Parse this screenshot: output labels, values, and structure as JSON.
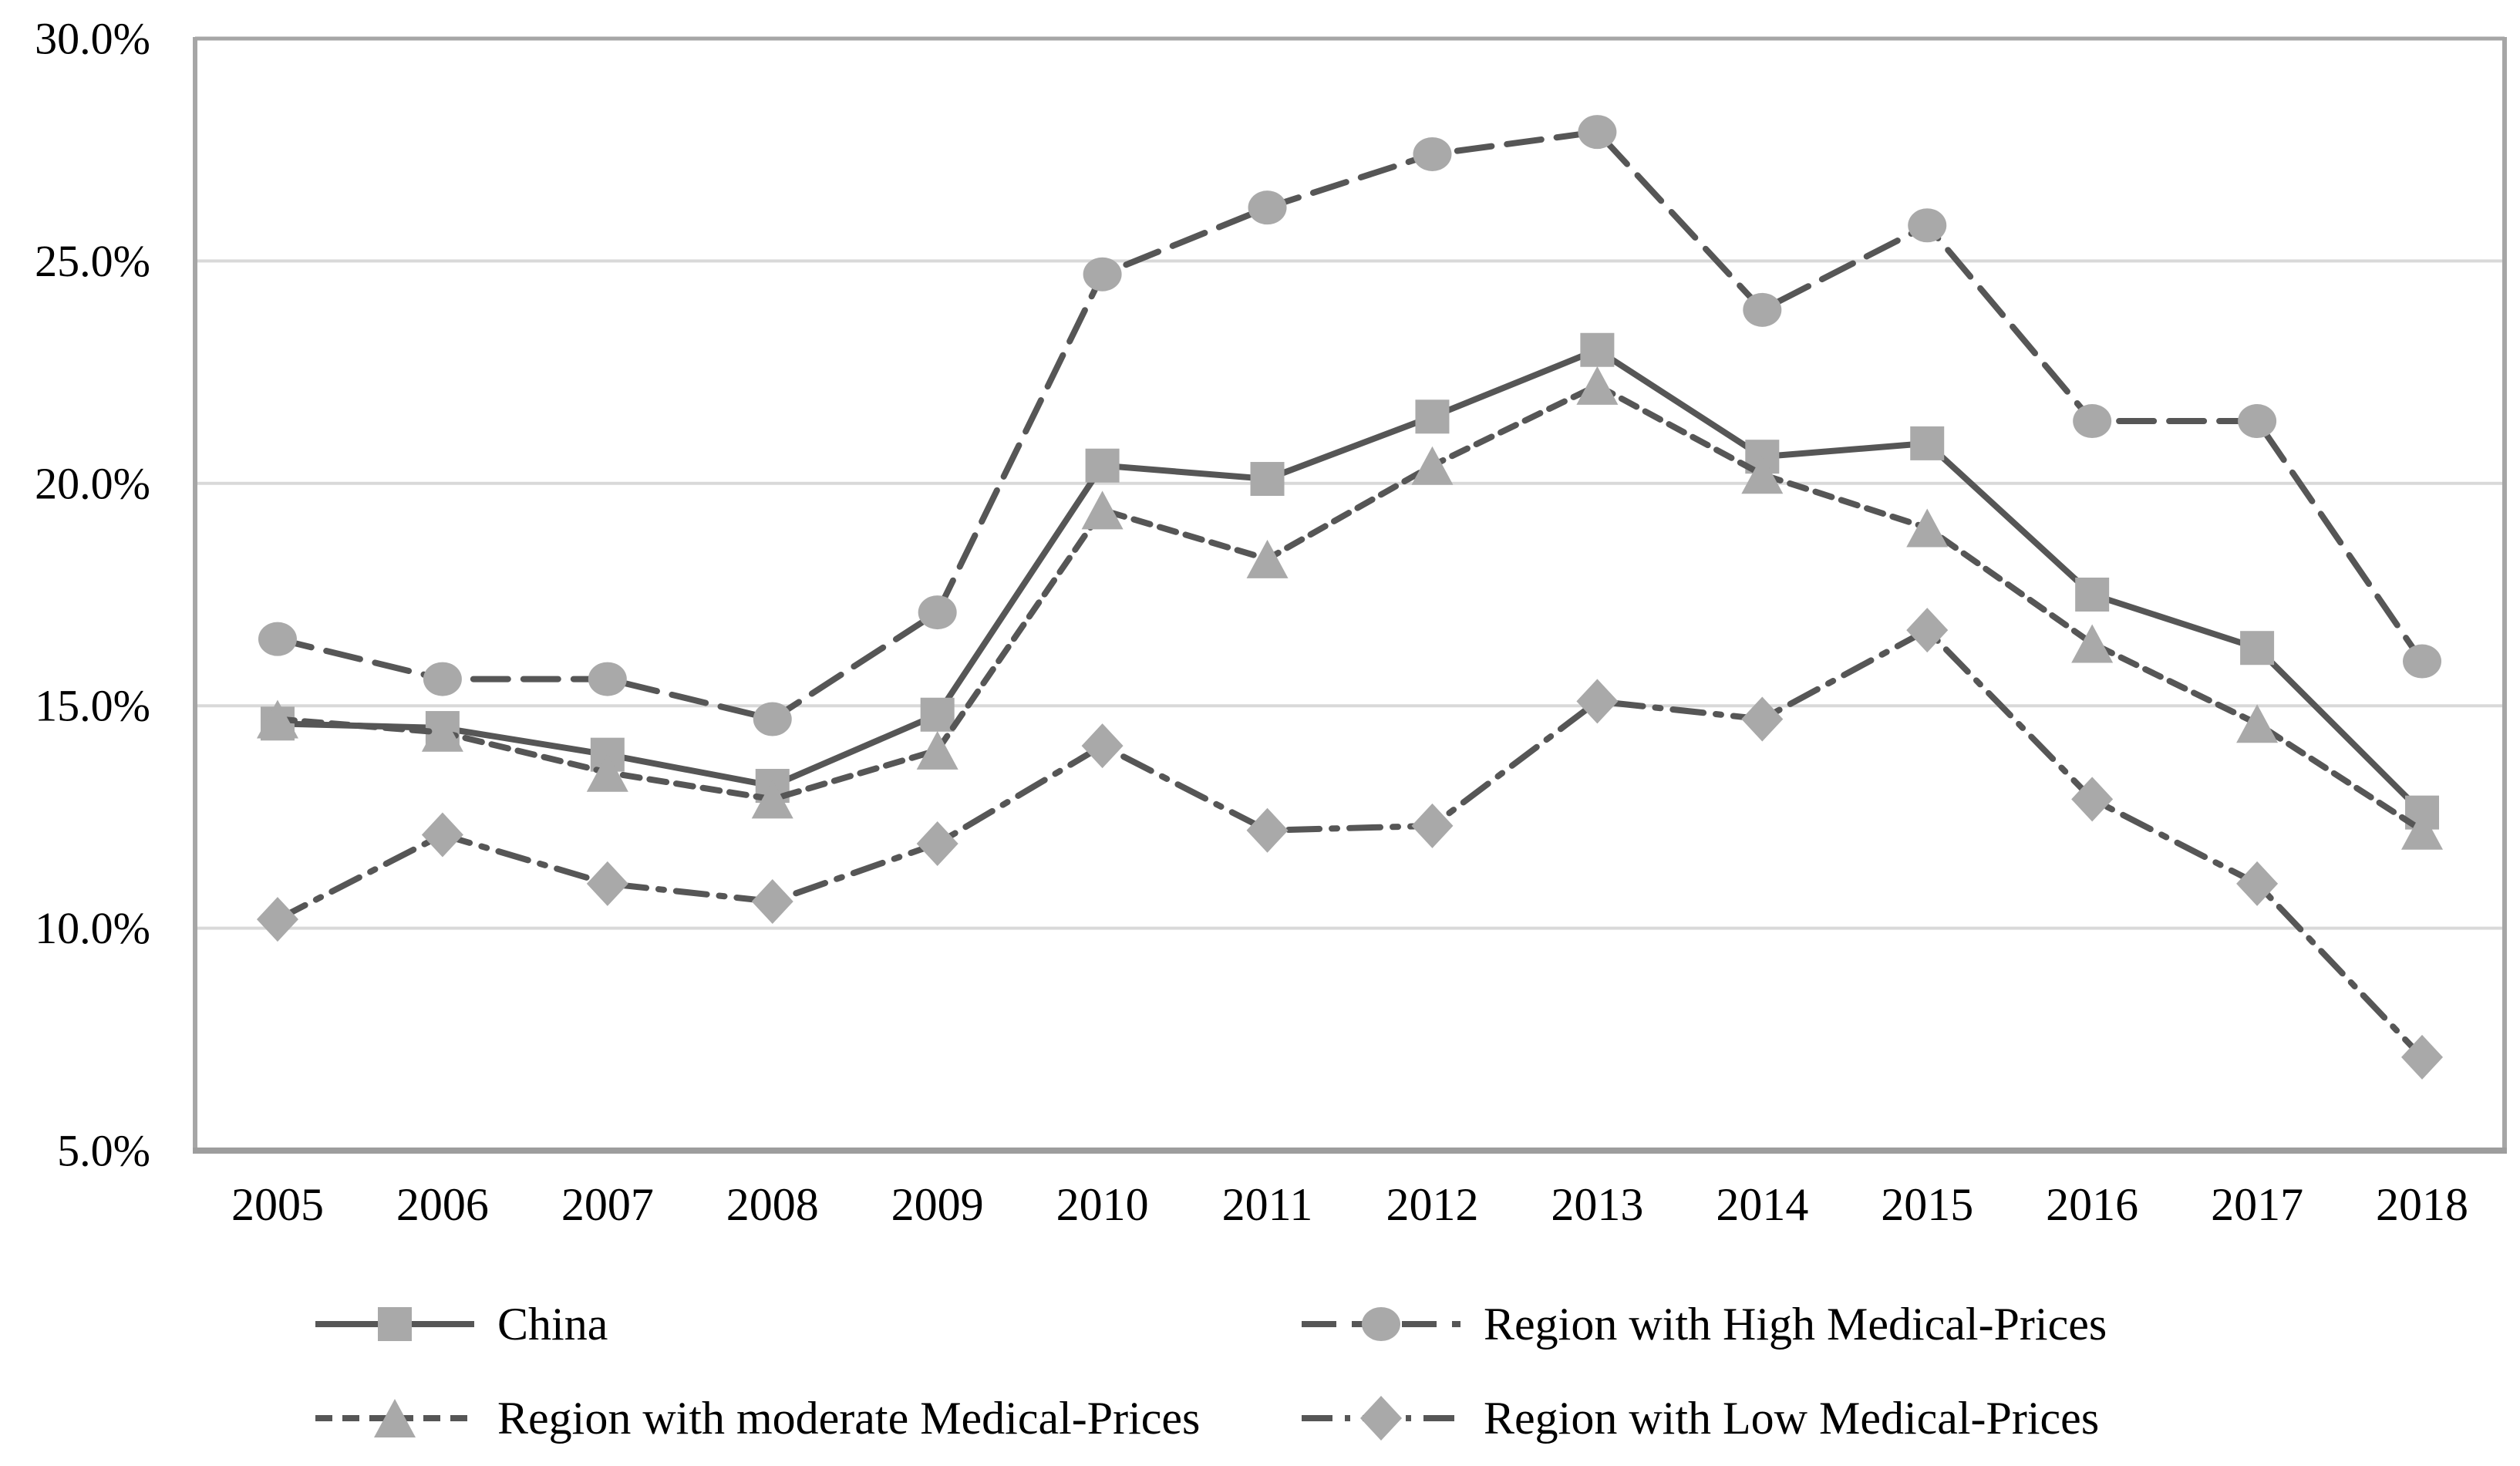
{
  "colors": {
    "line": "#565656",
    "marker": "#a9a9a9",
    "gridline": "#d9d9d9",
    "axis_border": "#a6a6a6",
    "bottom_border": "#9d9d9d",
    "text": "#000000",
    "background": "#ffffff"
  },
  "chart_data": {
    "type": "line",
    "title": "",
    "xlabel": "",
    "ylabel": "",
    "categories": [
      "2005",
      "2006",
      "2007",
      "2008",
      "2009",
      "2010",
      "2011",
      "2012",
      "2013",
      "2014",
      "2015",
      "2016",
      "2017",
      "2018"
    ],
    "series": [
      {
        "name": "China",
        "marker": "square",
        "line_style": "solid",
        "values": [
          14.6,
          14.5,
          13.9,
          13.2,
          14.8,
          20.4,
          20.1,
          21.5,
          23.0,
          20.6,
          20.9,
          17.5,
          16.3,
          12.6
        ]
      },
      {
        "name": "Region with High Medical-Prices",
        "marker": "circle",
        "line_style": "long-dash",
        "values": [
          16.5,
          15.6,
          15.6,
          14.7,
          17.1,
          24.7,
          26.2,
          27.4,
          27.9,
          23.9,
          25.8,
          21.4,
          21.4,
          16.0
        ]
      },
      {
        "name": "Region with moderate Medical-Prices",
        "marker": "triangle",
        "line_style": "short-dash",
        "values": [
          14.7,
          14.4,
          13.5,
          12.9,
          14.0,
          19.4,
          18.3,
          20.4,
          22.2,
          20.2,
          19.0,
          16.4,
          14.6,
          12.2
        ]
      },
      {
        "name": "Region with Low Medical-Prices",
        "marker": "diamond",
        "line_style": "dash-dot",
        "values": [
          10.2,
          12.1,
          11.0,
          10.6,
          11.9,
          14.1,
          12.2,
          12.3,
          15.1,
          14.7,
          16.7,
          12.9,
          11.0,
          7.1
        ]
      }
    ],
    "ylim": [
      5,
      30
    ],
    "ytick_step": 5,
    "ytick_labels": [
      "30.0%",
      "25.0%",
      "20.0%",
      "15.0%",
      "10.0%",
      "5.0%"
    ],
    "grid": true,
    "legend_position": "bottom",
    "legend_layout_rows": [
      [
        0,
        1
      ],
      [
        2,
        3
      ]
    ]
  }
}
